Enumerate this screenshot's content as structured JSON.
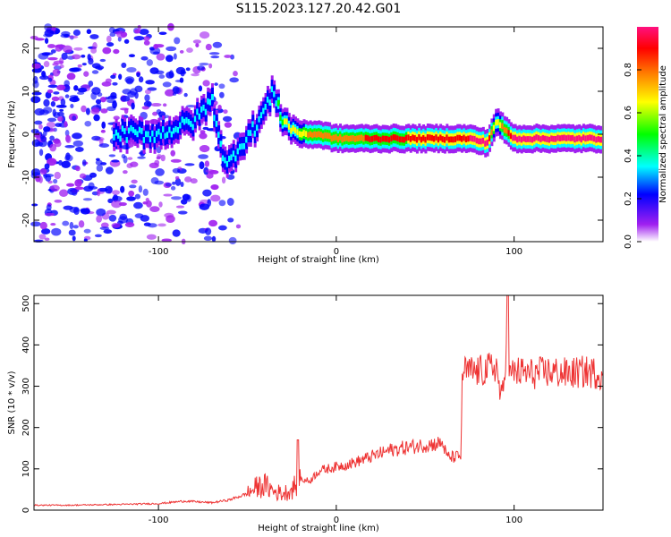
{
  "figure": {
    "title": "S115.2023.127.20.42.G01"
  },
  "chart_data": [
    {
      "type": "heatmap",
      "xlabel": "Height of straight line (km)",
      "ylabel": "Frequency (Hz)",
      "xlim": [
        -170,
        150
      ],
      "ylim": [
        -25,
        25
      ],
      "xticks": [
        -100,
        0,
        100
      ],
      "yticks": [
        -20,
        -10,
        0,
        10,
        20
      ],
      "colorbar": {
        "label": "Normalized spectral amplitude",
        "range": [
          0,
          1
        ],
        "ticks": [
          0.0,
          0.2,
          0.4,
          0.6,
          0.8
        ],
        "colormap": [
          "#ffffff",
          "#a020f0",
          "#0000ff",
          "#00ffff",
          "#00ff00",
          "#ffff00",
          "#ff8000",
          "#ff0000",
          "#ff1080"
        ]
      },
      "signal_track": {
        "description_points_x": [
          -120,
          -100,
          -80,
          -70,
          -62,
          -55,
          -45,
          -35,
          -30,
          -20,
          -10,
          0,
          20,
          50,
          75,
          85,
          90,
          100,
          130,
          150
        ],
        "frequency": [
          0,
          0,
          3,
          8,
          -8,
          -3,
          2,
          10,
          3,
          0,
          0,
          -1,
          -1,
          -1,
          -1,
          -2,
          3,
          -1,
          -1,
          -1
        ],
        "peak_amplitude": [
          0.3,
          0.35,
          0.35,
          0.3,
          0.3,
          0.3,
          0.3,
          0.3,
          0.5,
          0.6,
          0.75,
          0.7,
          0.8,
          0.85,
          0.9,
          0.95,
          0.5,
          0.95,
          0.95,
          0.9
        ]
      },
      "grid": false
    },
    {
      "type": "line",
      "xlabel": "Height of straight line (km)",
      "ylabel": "SNR (10 * v/v)",
      "xlim": [
        -170,
        150
      ],
      "ylim": [
        0,
        520
      ],
      "xticks": [
        -100,
        0,
        100
      ],
      "yticks": [
        0,
        100,
        200,
        300,
        400,
        500
      ],
      "color": "#ee3333",
      "series": [
        {
          "x": [
            -170,
            -150,
            -120,
            -100,
            -85,
            -70,
            -60,
            -50,
            -45,
            -40,
            -35,
            -30,
            -25,
            -20,
            -15,
            -10,
            -5,
            0,
            10,
            20,
            30,
            40,
            50,
            60,
            62,
            65,
            70,
            71,
            72,
            80,
            85,
            90,
            93,
            95,
            96,
            97,
            98,
            100,
            110,
            120,
            130,
            140,
            150
          ],
          "y": [
            12,
            12,
            14,
            16,
            22,
            18,
            25,
            40,
            55,
            60,
            45,
            40,
            50,
            75,
            70,
            95,
            100,
            105,
            115,
            130,
            145,
            152,
            158,
            162,
            130,
            128,
            130,
            340,
            335,
            335,
            340,
            350,
            260,
            330,
            520,
            330,
            325,
            335,
            330,
            335,
            330,
            335,
            330
          ]
        }
      ],
      "grid": false
    }
  ]
}
